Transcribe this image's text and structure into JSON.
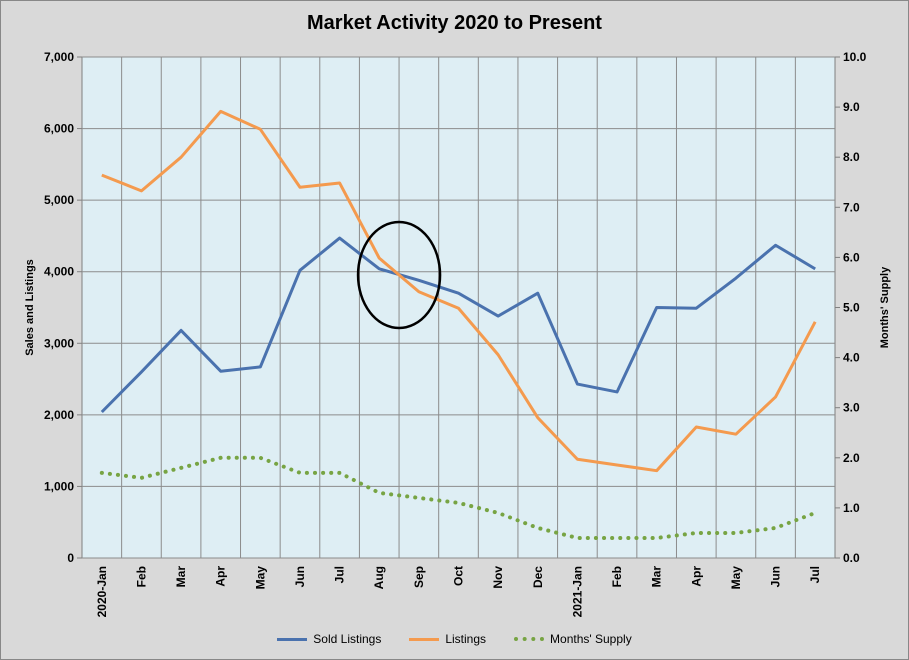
{
  "chart_data": {
    "type": "line",
    "title": "Market Activity 2020 to Present",
    "ylabel": "Sales and Listings",
    "y2label": "Months' Supply",
    "ylim": [
      0,
      7000
    ],
    "y2lim": [
      0,
      10
    ],
    "yticks": [
      "0",
      "1,000",
      "2,000",
      "3,000",
      "4,000",
      "5,000",
      "6,000",
      "7,000"
    ],
    "y2ticks": [
      "0.0",
      "1.0",
      "2.0",
      "3.0",
      "4.0",
      "5.0",
      "6.0",
      "7.0",
      "8.0",
      "9.0",
      "10.0"
    ],
    "categories": [
      "2020-Jan",
      "Feb",
      "Mar",
      "Apr",
      "May",
      "Jun",
      "Jul",
      "Aug",
      "Sep",
      "Oct",
      "Nov",
      "Dec",
      "2021-Jan",
      "Feb",
      "Mar",
      "Apr",
      "May",
      "Jun",
      "Jul"
    ],
    "grid": true,
    "legend_position": "bottom",
    "series": [
      {
        "name": "Sold Listings",
        "axis": "left",
        "color": "#4a72ae",
        "style": "solid",
        "values": [
          2040,
          2600,
          3180,
          2610,
          2670,
          4020,
          4470,
          4040,
          3880,
          3700,
          3380,
          3700,
          2430,
          2320,
          3500,
          3490,
          3910,
          4370,
          4040
        ]
      },
      {
        "name": "Listings",
        "axis": "left",
        "color": "#f49a4e",
        "style": "solid",
        "values": [
          5350,
          5130,
          5600,
          6240,
          5990,
          5180,
          5240,
          4190,
          3720,
          3490,
          2840,
          1960,
          1380,
          1300,
          1220,
          1830,
          1730,
          2250,
          3300
        ]
      },
      {
        "name": "Months' Supply",
        "axis": "right",
        "color": "#77a443",
        "style": "dotted",
        "values": [
          1.7,
          1.6,
          1.8,
          2.0,
          2.0,
          1.7,
          1.7,
          1.3,
          1.2,
          1.1,
          0.9,
          0.6,
          0.4,
          0.4,
          0.4,
          0.5,
          0.5,
          0.6,
          0.9
        ]
      }
    ],
    "annotations": [
      {
        "type": "ellipse",
        "around_category": "Aug-Sep"
      }
    ]
  }
}
